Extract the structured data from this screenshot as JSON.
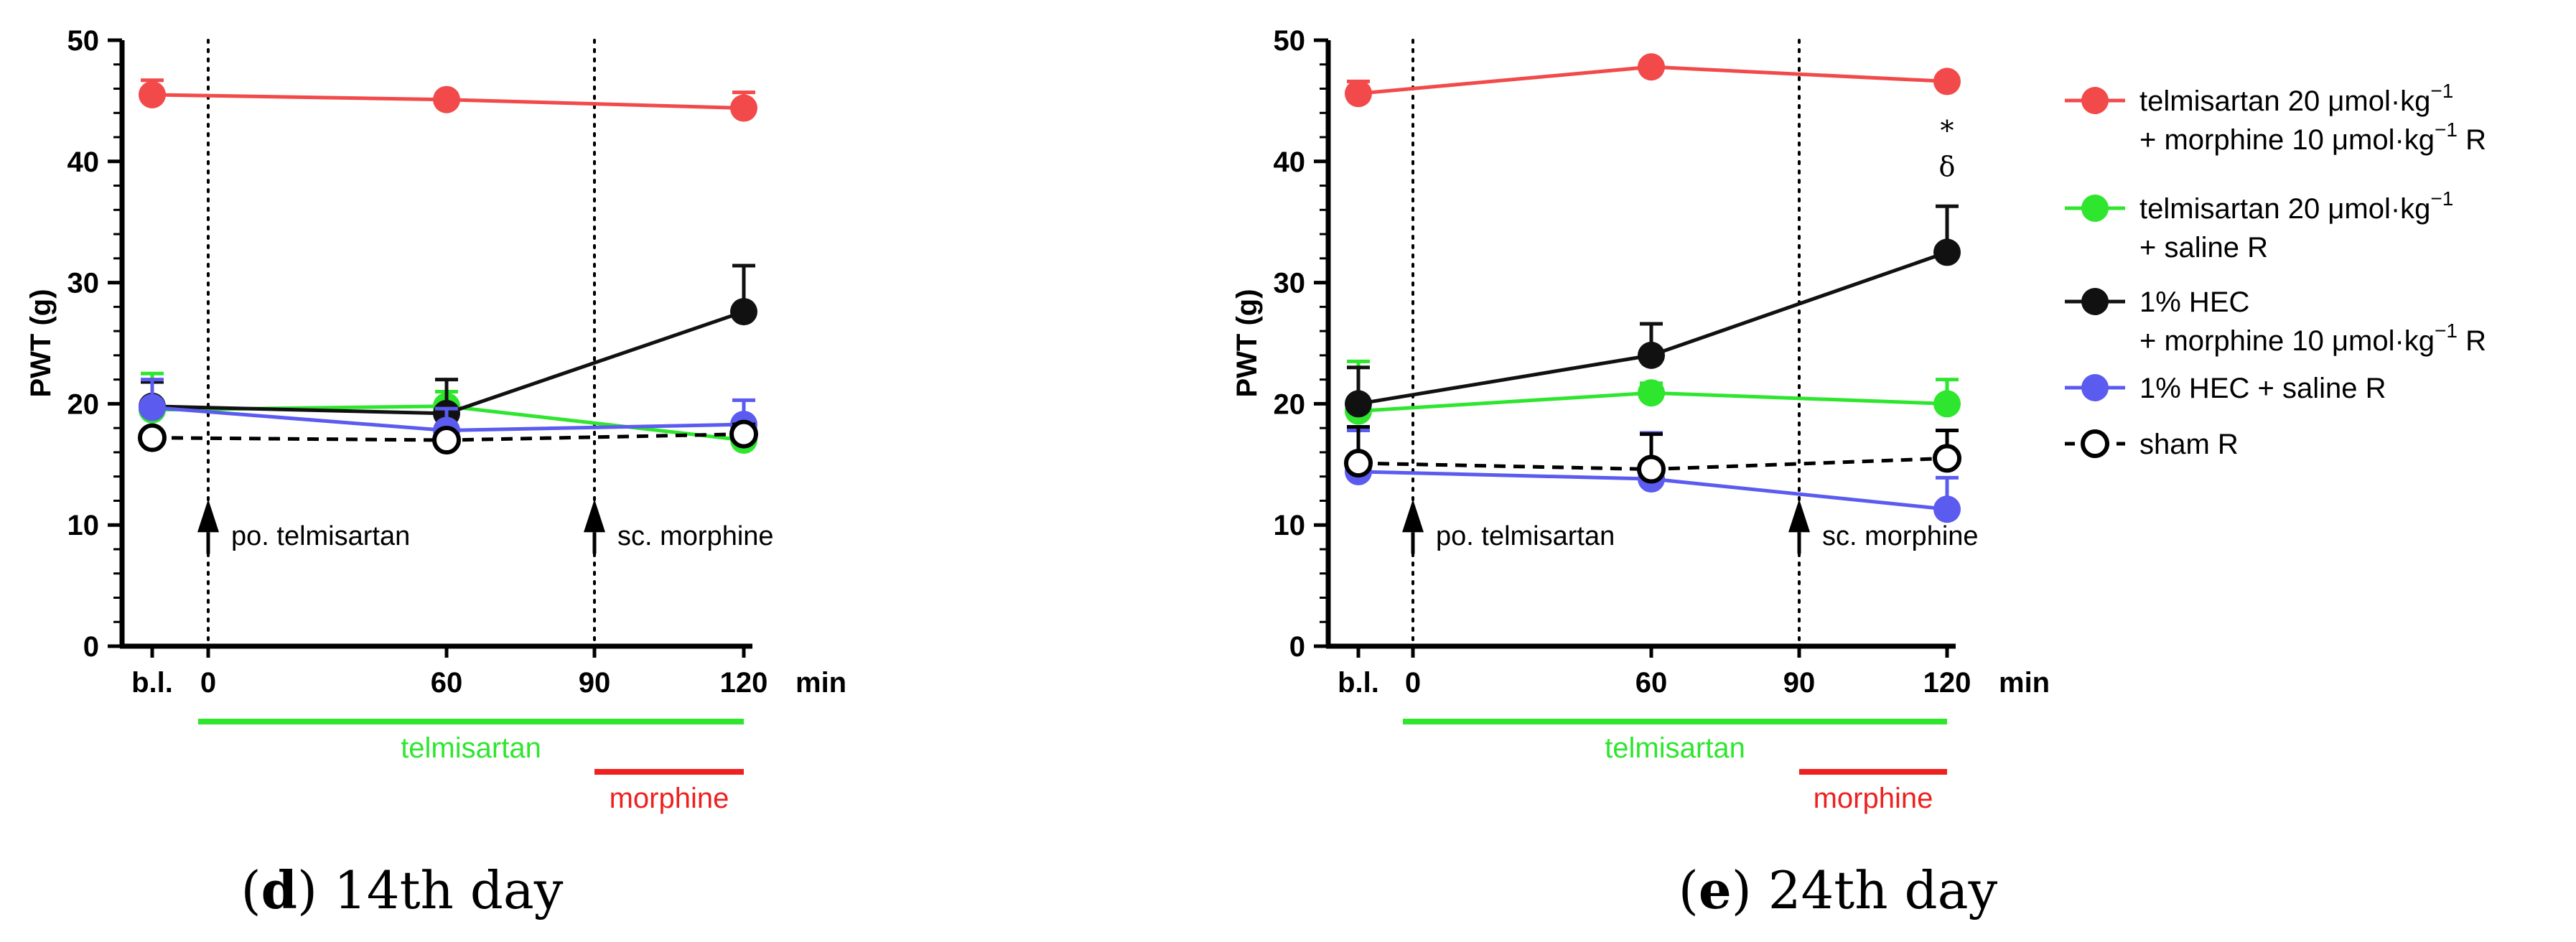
{
  "x_ticks": [
    "b.l.",
    "0",
    "60",
    "90",
    "120"
  ],
  "x_unit": "min",
  "legend": [
    {
      "line1": "telmisartan 20 μmol·kg",
      "sup1": "−1",
      "line2": "+ morphine 10 μmol·kg",
      "sup2": "−1",
      "tail2": " R",
      "color": "#f24a4a",
      "marker": "filled",
      "dashed": false
    },
    {
      "line1": "telmisartan 20 μmol·kg",
      "sup1": "−1",
      "line2": "+ saline R",
      "sup2": "",
      "tail2": "",
      "color": "#2ee62e",
      "marker": "filled",
      "dashed": false
    },
    {
      "line1": "1% HEC",
      "sup1": "",
      "line2": "+ morphine 10 μmol·kg",
      "sup2": "−1",
      "tail2": " R",
      "color": "#111111",
      "marker": "filled",
      "dashed": false
    },
    {
      "line1": "1% HEC + saline R",
      "sup1": "",
      "line2": "",
      "sup2": "",
      "tail2": "",
      "color": "#5b5bf0",
      "marker": "filled",
      "dashed": false
    },
    {
      "line1": "sham R",
      "sup1": "",
      "line2": "",
      "sup2": "",
      "tail2": "",
      "color": "#000000",
      "marker": "open",
      "dashed": true
    }
  ],
  "chart_data": [
    {
      "type": "line",
      "panel_label": "d",
      "panel_caption": "14th day",
      "ylabel": "PWT (g)",
      "ylim": [
        0,
        50
      ],
      "yticks": [
        0,
        10,
        20,
        30,
        40,
        50
      ],
      "x_positions": [
        "b.l.",
        0,
        60,
        90,
        120
      ],
      "annotations": [
        {
          "text": "po. telmisartan",
          "x": 0
        },
        {
          "text": "sc. morphine",
          "x": 90
        }
      ],
      "treatment_bars": [
        {
          "label": "telmisartan",
          "from": 0,
          "to": 120,
          "color": "#2ee62e"
        },
        {
          "label": "morphine",
          "from": 90,
          "to": 120,
          "color": "#ee2020"
        }
      ],
      "significance": [],
      "series": [
        {
          "x": [
            "b.l.",
            0,
            60,
            120
          ],
          "values": [
            45.5,
            null,
            45.1,
            44.4
          ],
          "err": [
            1.2,
            null,
            0.5,
            1.3
          ]
        },
        {
          "x": [
            "b.l.",
            0,
            60,
            120
          ],
          "values": [
            19.5,
            null,
            19.8,
            17.0
          ],
          "err": [
            3.0,
            null,
            1.2,
            1.0
          ]
        },
        {
          "x": [
            "b.l.",
            0,
            60,
            120
          ],
          "values": [
            19.8,
            null,
            19.2,
            27.6
          ],
          "err": [
            2.0,
            null,
            2.8,
            3.8
          ]
        },
        {
          "x": [
            "b.l.",
            0,
            60,
            120
          ],
          "values": [
            19.7,
            null,
            17.8,
            18.3
          ],
          "err": [
            2.3,
            null,
            1.8,
            2.0
          ]
        },
        {
          "x": [
            "b.l.",
            0,
            60,
            120
          ],
          "values": [
            17.2,
            null,
            17.0,
            17.5
          ],
          "err": [
            0.4,
            null,
            0.3,
            0.8
          ]
        }
      ]
    },
    {
      "type": "line",
      "panel_label": "e",
      "panel_caption": "24th day",
      "ylabel": "PWT (g)",
      "ylim": [
        0,
        50
      ],
      "yticks": [
        0,
        10,
        20,
        30,
        40,
        50
      ],
      "x_positions": [
        "b.l.",
        0,
        60,
        90,
        120
      ],
      "annotations": [
        {
          "text": "po. telmisartan",
          "x": 0
        },
        {
          "text": "sc. morphine",
          "x": 90
        }
      ],
      "treatment_bars": [
        {
          "label": "telmisartan",
          "from": 0,
          "to": 120,
          "color": "#2ee62e"
        },
        {
          "label": "morphine",
          "from": 90,
          "to": 120,
          "color": "#ee2020"
        }
      ],
      "significance": [
        {
          "x": 120,
          "symbols": [
            "*",
            "δ"
          ]
        }
      ],
      "series": [
        {
          "x": [
            "b.l.",
            0,
            60,
            120
          ],
          "values": [
            45.6,
            null,
            47.8,
            46.6
          ],
          "err": [
            1.0,
            null,
            0.3,
            0.3
          ]
        },
        {
          "x": [
            "b.l.",
            0,
            60,
            120
          ],
          "values": [
            19.4,
            null,
            20.9,
            20.0
          ],
          "err": [
            4.1,
            null,
            0.8,
            2.0
          ]
        },
        {
          "x": [
            "b.l.",
            0,
            60,
            120
          ],
          "values": [
            20.0,
            null,
            24.0,
            32.5
          ],
          "err": [
            3.0,
            null,
            2.6,
            3.8
          ]
        },
        {
          "x": [
            "b.l.",
            0,
            60,
            120
          ],
          "values": [
            14.4,
            null,
            13.8,
            11.3
          ],
          "err": [
            3.4,
            null,
            3.8,
            2.6
          ]
        },
        {
          "x": [
            "b.l.",
            0,
            60,
            120
          ],
          "values": [
            15.1,
            null,
            14.6,
            15.5
          ],
          "err": [
            3.0,
            null,
            2.9,
            2.3
          ]
        }
      ]
    }
  ]
}
